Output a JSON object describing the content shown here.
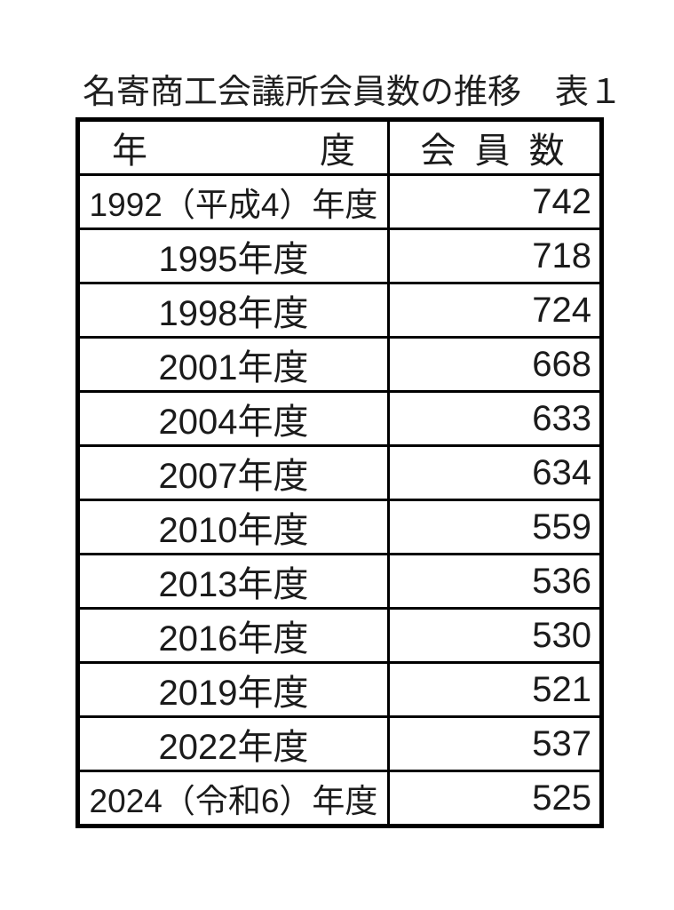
{
  "page_title": "名寄商工会議所会員数の推移　表１",
  "colors": {
    "background": "#ffffff",
    "border": "#000000",
    "text": "#1b1b1b"
  },
  "chart_data": {
    "type": "table",
    "title": "名寄商工会議所会員数の推移",
    "table_label": "表１",
    "columns": {
      "year_label_left": "年",
      "year_label_right": "度",
      "members_label": "会 員 数"
    },
    "rows": [
      {
        "year": "1992（平成4）年度",
        "members": "742"
      },
      {
        "year": "1995年度",
        "members": "718"
      },
      {
        "year": "1998年度",
        "members": "724"
      },
      {
        "year": "2001年度",
        "members": "668"
      },
      {
        "year": "2004年度",
        "members": "633"
      },
      {
        "year": "2007年度",
        "members": "634"
      },
      {
        "year": "2010年度",
        "members": "559"
      },
      {
        "year": "2013年度",
        "members": "536"
      },
      {
        "year": "2016年度",
        "members": "530"
      },
      {
        "year": "2019年度",
        "members": "521"
      },
      {
        "year": "2022年度",
        "members": "537"
      },
      {
        "year": "2024（令和6）年度",
        "members": "525"
      }
    ],
    "categories": [
      "1992（平成4）年度",
      "1995年度",
      "1998年度",
      "2001年度",
      "2004年度",
      "2007年度",
      "2010年度",
      "2013年度",
      "2016年度",
      "2019年度",
      "2022年度",
      "2024（令和6）年度"
    ],
    "values": [
      742,
      718,
      724,
      668,
      633,
      634,
      559,
      536,
      530,
      521,
      537,
      525
    ]
  }
}
